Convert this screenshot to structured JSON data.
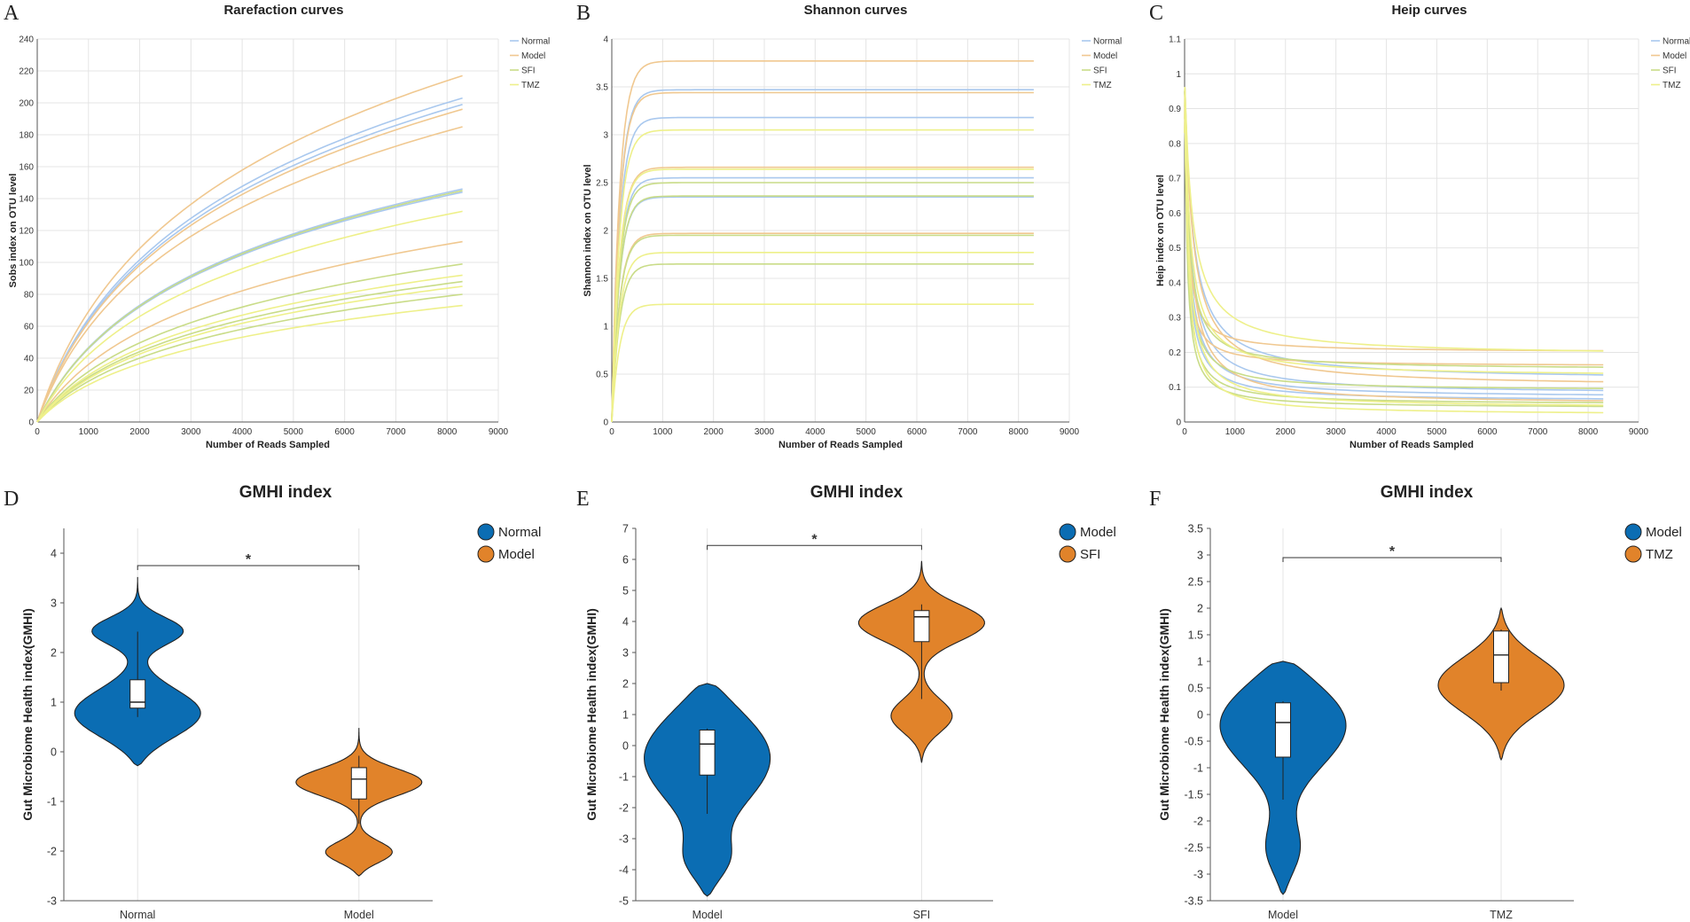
{
  "chart_data": [
    {
      "panel": "A",
      "type": "line",
      "title": "Rarefaction curves",
      "xlabel": "Number of Reads Sampled",
      "ylabel": "Sobs index on OTU level",
      "xlim": [
        0,
        9000
      ],
      "ylim": [
        0,
        240
      ],
      "xticks": [
        0,
        1000,
        2000,
        3000,
        4000,
        5000,
        6000,
        7000,
        8000,
        9000
      ],
      "yticks": [
        0,
        20,
        40,
        60,
        80,
        100,
        120,
        140,
        160,
        180,
        200,
        220,
        240
      ],
      "yticklabels": [
        "0",
        "20",
        "40",
        "60",
        "80",
        "100",
        "120",
        "140",
        "160",
        "180",
        "200",
        "220",
        "240"
      ],
      "legend": [
        "Normal",
        "Model",
        "SFI",
        "TMZ"
      ],
      "series_colors": {
        "Normal": "#a9c8ee",
        "Model": "#f0c890",
        "SFI": "#c9dc88",
        "TMZ": "#eef08a"
      },
      "curve_shape": "rarefaction",
      "x_end": 8300,
      "series": [
        {
          "group": "Normal",
          "end": 203
        },
        {
          "group": "Normal",
          "end": 199
        },
        {
          "group": "Normal",
          "end": 146
        },
        {
          "group": "Normal",
          "end": 144
        },
        {
          "group": "Model",
          "end": 217
        },
        {
          "group": "Model",
          "end": 196
        },
        {
          "group": "Model",
          "end": 185
        },
        {
          "group": "Model",
          "end": 113
        },
        {
          "group": "SFI",
          "end": 145
        },
        {
          "group": "SFI",
          "end": 99
        },
        {
          "group": "SFI",
          "end": 88
        },
        {
          "group": "SFI",
          "end": 80
        },
        {
          "group": "TMZ",
          "end": 132
        },
        {
          "group": "TMZ",
          "end": 92
        },
        {
          "group": "TMZ",
          "end": 85
        },
        {
          "group": "TMZ",
          "end": 73
        }
      ]
    },
    {
      "panel": "B",
      "type": "line",
      "title": "Shannon curves",
      "xlabel": "Number of Reads Sampled",
      "ylabel": "Shannon index on OTU level",
      "xlim": [
        0,
        9000
      ],
      "ylim": [
        0,
        4
      ],
      "xticks": [
        0,
        1000,
        2000,
        3000,
        4000,
        5000,
        6000,
        7000,
        8000,
        9000
      ],
      "yticks": [
        0,
        0.5,
        1,
        1.5,
        2,
        2.5,
        3,
        3.5,
        4
      ],
      "yticklabels": [
        "0",
        "0.5",
        "1",
        "1.5",
        "2",
        "2.5",
        "3",
        "3.5",
        "4"
      ],
      "legend": [
        "Normal",
        "Model",
        "SFI",
        "TMZ"
      ],
      "series_colors": {
        "Normal": "#a9c8ee",
        "Model": "#f0c890",
        "SFI": "#c9dc88",
        "TMZ": "#eef08a"
      },
      "curve_shape": "saturating",
      "x_end": 8300,
      "series": [
        {
          "group": "Normal",
          "end": 3.47
        },
        {
          "group": "Normal",
          "end": 3.18
        },
        {
          "group": "Normal",
          "end": 2.55
        },
        {
          "group": "Normal",
          "end": 2.35
        },
        {
          "group": "Model",
          "end": 3.77
        },
        {
          "group": "Model",
          "end": 3.44
        },
        {
          "group": "Model",
          "end": 2.66
        },
        {
          "group": "Model",
          "end": 1.97
        },
        {
          "group": "SFI",
          "end": 2.5
        },
        {
          "group": "SFI",
          "end": 2.36
        },
        {
          "group": "SFI",
          "end": 1.95
        },
        {
          "group": "SFI",
          "end": 1.65
        },
        {
          "group": "TMZ",
          "end": 3.05
        },
        {
          "group": "TMZ",
          "end": 2.64
        },
        {
          "group": "TMZ",
          "end": 1.77
        },
        {
          "group": "TMZ",
          "end": 1.23
        }
      ]
    },
    {
      "panel": "C",
      "type": "line",
      "title": "Heip curves",
      "xlabel": "Number of Reads Sampled",
      "ylabel": "Heip index on OTU level",
      "xlim": [
        0,
        9000
      ],
      "ylim": [
        0,
        1.1
      ],
      "xticks": [
        0,
        1000,
        2000,
        3000,
        4000,
        5000,
        6000,
        7000,
        8000,
        9000
      ],
      "yticks": [
        0,
        0.1,
        0.2,
        0.3,
        0.4,
        0.5,
        0.6,
        0.7,
        0.8,
        0.9,
        1,
        1.1
      ],
      "yticklabels": [
        "0",
        "0.1",
        "0.2",
        "0.3",
        "0.4",
        "0.5",
        "0.6",
        "0.7",
        "0.8",
        "0.9",
        "1",
        "1.1"
      ],
      "legend": [
        "Normal",
        "Model",
        "SFI",
        "TMZ"
      ],
      "series_colors": {
        "Normal": "#a9c8ee",
        "Model": "#f0c890",
        "SFI": "#c9dc88",
        "TMZ": "#eef08a"
      },
      "curve_shape": "decay",
      "x_end": 8300,
      "series": [
        {
          "group": "Normal",
          "end": 0.12
        },
        {
          "group": "Normal",
          "end": 0.08
        },
        {
          "group": "Normal",
          "end": 0.07
        },
        {
          "group": "Normal",
          "end": 0.06
        },
        {
          "group": "Model",
          "end": 0.2
        },
        {
          "group": "Model",
          "end": 0.16
        },
        {
          "group": "Model",
          "end": 0.1
        },
        {
          "group": "Model",
          "end": 0.05
        },
        {
          "group": "SFI",
          "end": 0.15
        },
        {
          "group": "SFI",
          "end": 0.09
        },
        {
          "group": "SFI",
          "end": 0.05
        },
        {
          "group": "SFI",
          "end": 0.04
        },
        {
          "group": "TMZ",
          "end": 0.19
        },
        {
          "group": "TMZ",
          "end": 0.13
        },
        {
          "group": "TMZ",
          "end": 0.04
        },
        {
          "group": "TMZ",
          "end": 0.02
        }
      ]
    },
    {
      "panel": "D",
      "type": "violin",
      "title": "GMHI index",
      "ylabel": "Gut Microbiome Health index(GMHI)",
      "ylim": [
        -3,
        4.5
      ],
      "yticks": [
        -3,
        -2,
        -1,
        0,
        1,
        2,
        3,
        4
      ],
      "yticklabels": [
        "-3",
        "-2",
        "-1",
        "0",
        "1",
        "2",
        "3",
        "4"
      ],
      "categories": [
        "Normal",
        "Model"
      ],
      "colors": [
        "#0b6db3",
        "#e1832a"
      ],
      "significance": "*",
      "sig_y": 3.75,
      "groups": [
        {
          "name": "Normal",
          "min": -0.28,
          "max": 3.52,
          "modes": [
            [
              0.72,
              0.5,
              0.42
            ],
            [
              2.45,
              0.28,
              0.3
            ]
          ],
          "box": {
            "q1": 0.88,
            "median": 1.0,
            "q3": 1.45,
            "wlow": 0.7,
            "whigh": 2.42
          }
        },
        {
          "name": "Model",
          "min": -2.5,
          "max": 0.48,
          "modes": [
            [
              -0.6,
              0.28,
              0.45
            ],
            [
              -2.05,
              0.22,
              0.3
            ]
          ],
          "box": {
            "q1": -0.95,
            "median": -0.55,
            "q3": -0.32,
            "wlow": -1.45,
            "whigh": -0.08
          }
        }
      ]
    },
    {
      "panel": "E",
      "type": "violin",
      "title": "GMHI index",
      "ylabel": "Gut Microbiome Health index(GMHI)",
      "ylim": [
        -5,
        7
      ],
      "yticks": [
        -5,
        -4,
        -3,
        -2,
        -1,
        0,
        1,
        2,
        3,
        4,
        5,
        6,
        7
      ],
      "yticklabels": [
        "-5",
        "-4",
        "-3",
        "-2",
        "-1",
        "0",
        "1",
        "2",
        "3",
        "4",
        "5",
        "6",
        "7"
      ],
      "categories": [
        "Model",
        "SFI"
      ],
      "colors": [
        "#0b6db3",
        "#e1832a"
      ],
      "significance": "*",
      "sig_y": 6.45,
      "groups": [
        {
          "name": "Model",
          "min": -4.85,
          "max": 2.0,
          "modes": [
            [
              -0.2,
              1.6,
              0.42
            ],
            [
              -3.8,
              0.7,
              0.15
            ]
          ],
          "box": {
            "q1": -0.95,
            "median": 0.05,
            "q3": 0.5,
            "wlow": -2.2,
            "whigh": 0.55
          }
        },
        {
          "name": "SFI",
          "min": -0.55,
          "max": 5.95,
          "modes": [
            [
              4.0,
              0.6,
              0.42
            ],
            [
              0.9,
              0.55,
              0.22
            ]
          ],
          "box": {
            "q1": 3.35,
            "median": 4.15,
            "q3": 4.35,
            "wlow": 1.5,
            "whigh": 4.55
          }
        }
      ]
    },
    {
      "panel": "F",
      "type": "violin",
      "title": "GMHI index",
      "ylabel": "Gut Microbiome Health index(GMHI)",
      "ylim": [
        -3.5,
        3.5
      ],
      "yticks": [
        -3.5,
        -3,
        -2.5,
        -2,
        -1.5,
        -1,
        -0.5,
        0,
        0.5,
        1,
        1.5,
        2,
        2.5,
        3,
        3.5
      ],
      "yticklabels": [
        "-3.5",
        "-3",
        "-2.5",
        "-2",
        "-1.5",
        "-1",
        "-0.5",
        "0",
        "0.5",
        "1",
        "1.5",
        "2",
        "2.5",
        "3",
        "3.5"
      ],
      "categories": [
        "Model",
        "TMZ"
      ],
      "colors": [
        "#0b6db3",
        "#e1832a"
      ],
      "significance": "*",
      "sig_y": 2.95,
      "groups": [
        {
          "name": "Model",
          "min": -3.38,
          "max": 1.0,
          "modes": [
            [
              -0.05,
              0.85,
              0.42
            ],
            [
              -2.6,
              0.5,
              0.12
            ]
          ],
          "box": {
            "q1": -0.8,
            "median": -0.15,
            "q3": 0.22,
            "wlow": -1.6,
            "whigh": 0.25
          }
        },
        {
          "name": "TMZ",
          "min": -0.85,
          "max": 2.0,
          "modes": [
            [
              0.55,
              0.55,
              0.42
            ]
          ],
          "box": {
            "q1": 0.6,
            "median": 1.12,
            "q3": 1.57,
            "wlow": 0.45,
            "whigh": 1.6
          }
        }
      ]
    }
  ]
}
